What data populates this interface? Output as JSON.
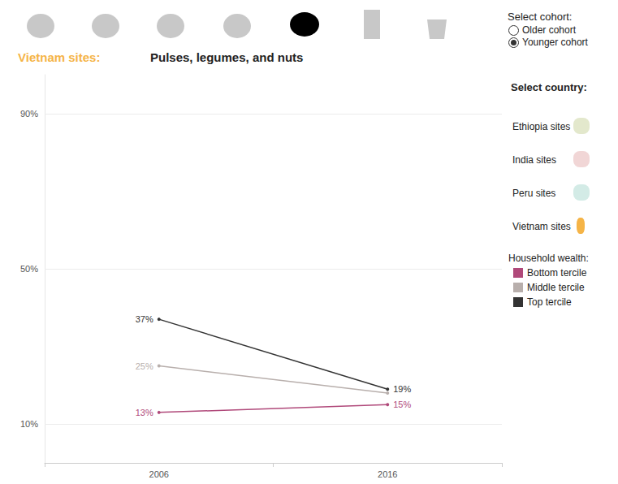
{
  "controls": {
    "section_label": "Vietnam sites:",
    "cohort": {
      "label": "Select cohort:",
      "options": [
        "Older cohort",
        "Younger cohort"
      ],
      "selected": "Younger cohort"
    },
    "country": {
      "label": "Select country:",
      "options": [
        "Ethiopia sites",
        "India sites",
        "Peru sites",
        "Vietnam sites"
      ]
    },
    "legend_title": "Household wealth:"
  },
  "chart_data": {
    "type": "line",
    "title": "Pulses, legumes, and nuts",
    "categories": [
      "2006",
      "2016"
    ],
    "series": [
      {
        "name": "Bottom tercile",
        "color": "#b0497a",
        "values": [
          13,
          15
        ],
        "value_labels": [
          "13%",
          "15%"
        ]
      },
      {
        "name": "Middle tercile",
        "color": "#b8afac",
        "values": [
          25,
          18
        ],
        "value_labels": [
          "25%",
          null
        ]
      },
      {
        "name": "Top tercile",
        "color": "#333333",
        "values": [
          37,
          19
        ],
        "value_labels": [
          "37%",
          "19%"
        ]
      }
    ],
    "ylim": [
      0,
      100
    ],
    "yticks": [
      {
        "value": 10,
        "label": "10%"
      },
      {
        "value": 50,
        "label": "50%"
      },
      {
        "value": 90,
        "label": "90%"
      }
    ],
    "grid": true,
    "legend": "right",
    "data_labels": true,
    "marker": "circle"
  }
}
